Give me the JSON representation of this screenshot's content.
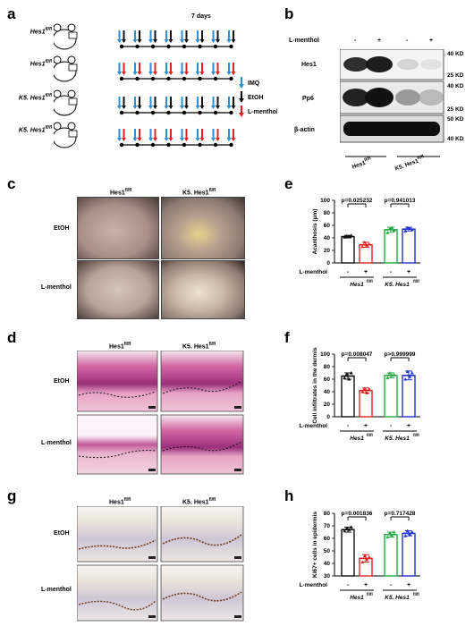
{
  "panels": {
    "a": {
      "label": "a",
      "duration": "7 days",
      "genotypes": [
        "Hes1",
        "Hes1",
        "K5. Hes1",
        "K5. Hes1"
      ],
      "genotype_sup": "fl/fl",
      "legend": [
        "IMQ",
        "EtOH",
        "L-menthol"
      ],
      "colors": {
        "imq": "#2e8fd1",
        "etoh": "#111111",
        "menthol": "#e02424"
      }
    },
    "b": {
      "label": "b",
      "treatment_label": "L-menthol",
      "lanes": [
        "-",
        "+",
        "-",
        "+"
      ],
      "proteins": [
        "Hes1",
        "Pp6",
        "β-actin"
      ],
      "mw": [
        "40 KD",
        "25 KD",
        "40 KD",
        "25 KD",
        "50 KD",
        "40 KD"
      ],
      "groups": [
        "Hes1",
        "K5. Hes1"
      ],
      "group_sup": "fl/fl"
    },
    "c": {
      "label": "c",
      "cols": [
        "Hes1",
        "K5. Hes1"
      ],
      "col_sup": "fl/fl",
      "rows": [
        "EtOH",
        "L-menthol"
      ]
    },
    "d": {
      "label": "d",
      "cols": [
        "Hes1",
        "K5. Hes1"
      ],
      "col_sup": "fl/fl",
      "rows": [
        "EtOH",
        "L-menthol"
      ]
    },
    "g": {
      "label": "g",
      "cols": [
        "Hes1",
        "K5. Hes1"
      ],
      "col_sup": "fl/fl",
      "rows": [
        "EtOH",
        "L-menthol"
      ]
    }
  },
  "chart_data": [
    {
      "panel": "e",
      "type": "bar",
      "ylabel": "Acanthosis (μm)",
      "ylim": [
        0,
        100
      ],
      "yticks": [
        0,
        20,
        40,
        60,
        80,
        100
      ],
      "treatment_label": "L-menthol",
      "categories": [
        "-",
        "+",
        "-",
        "+"
      ],
      "groups": [
        "Hes1",
        "K5. Hes1"
      ],
      "group_sup": "fl/fl",
      "values": [
        42,
        29,
        53,
        54
      ],
      "errors": [
        2,
        4,
        4,
        3
      ],
      "points": [
        [
          41,
          43,
          42,
          44
        ],
        [
          26,
          33,
          28,
          30
        ],
        [
          48,
          55,
          56,
          52
        ],
        [
          51,
          56,
          55,
          53
        ]
      ],
      "colors": [
        "#111111",
        "#e02424",
        "#2aa84a",
        "#2233cc"
      ],
      "pvalues": [
        "p=0.025232",
        "p=0.941013"
      ]
    },
    {
      "panel": "f",
      "type": "bar",
      "ylabel": "Cell infiltrates in the dermis",
      "ylim": [
        0,
        100
      ],
      "yticks": [
        0,
        20,
        40,
        60,
        80,
        100
      ],
      "treatment_label": "L-menthol",
      "categories": [
        "-",
        "+",
        "-",
        "+"
      ],
      "groups": [
        "Hes1",
        "K5. Hes1"
      ],
      "group_sup": "fl/fl",
      "values": [
        65,
        42,
        66,
        66
      ],
      "errors": [
        5,
        4,
        4,
        7
      ],
      "points": [
        [
          62,
          68,
          60,
          70
        ],
        [
          40,
          45,
          38,
          44
        ],
        [
          62,
          70,
          66,
          67
        ],
        [
          60,
          72,
          64,
          70
        ]
      ],
      "colors": [
        "#111111",
        "#e02424",
        "#2aa84a",
        "#2233cc"
      ],
      "pvalues": [
        "p=0.008047",
        "p>0.999999"
      ]
    },
    {
      "panel": "h",
      "type": "bar",
      "ylabel": "Ki67+ cells in epidermis",
      "ylim": [
        30,
        80
      ],
      "yticks": [
        30,
        40,
        50,
        60,
        70,
        80
      ],
      "treatment_label": "L-menthol",
      "categories": [
        "-",
        "+",
        "-",
        "+"
      ],
      "groups": [
        "Hes1",
        "K5. Hes1"
      ],
      "group_sup": "fl/fl",
      "values": [
        67,
        44,
        63,
        64
      ],
      "errors": [
        2,
        3,
        2,
        2
      ],
      "points": [
        [
          66,
          68,
          67,
          69
        ],
        [
          41,
          46,
          43,
          45
        ],
        [
          61,
          64,
          62,
          65
        ],
        [
          62,
          66,
          63,
          65
        ]
      ],
      "colors": [
        "#111111",
        "#e02424",
        "#2aa84a",
        "#2233cc"
      ],
      "pvalues": [
        "p=0.001836",
        "p=0.717428"
      ]
    }
  ]
}
